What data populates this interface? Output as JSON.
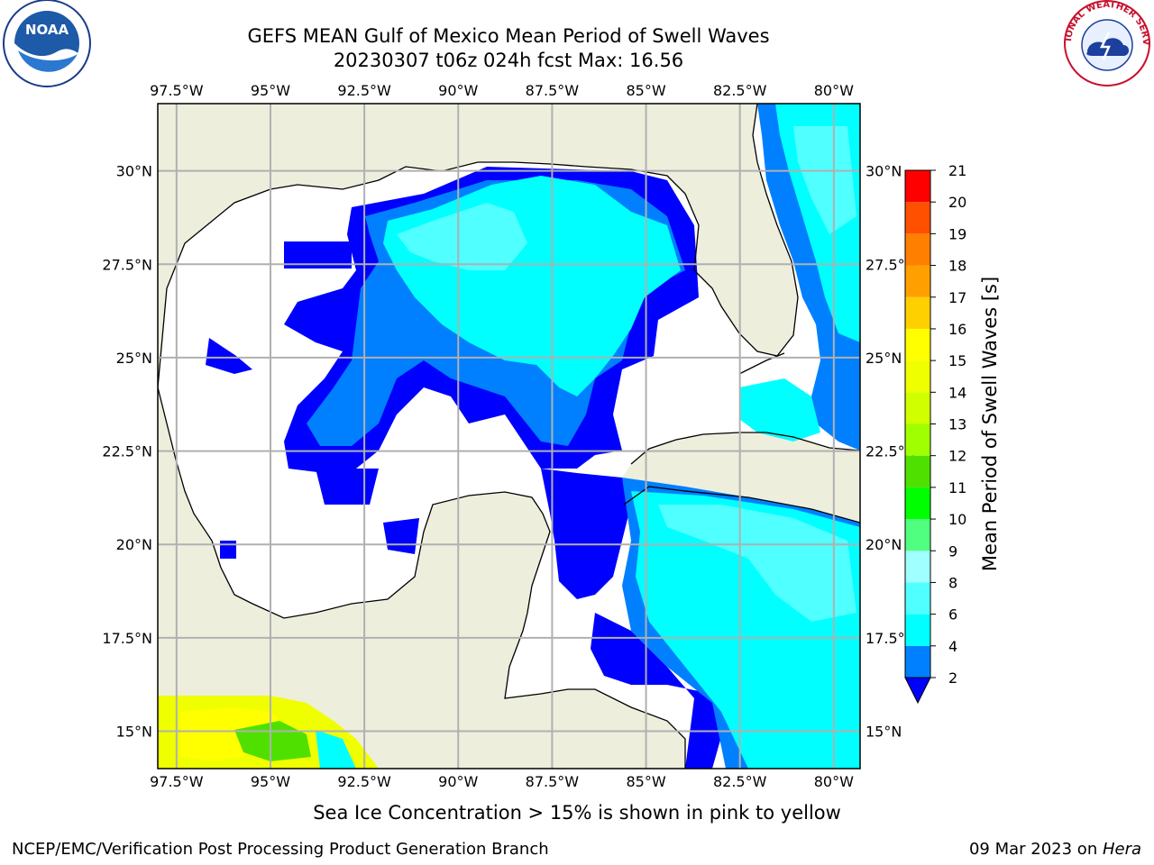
{
  "title_line1": "GEFS MEAN Gulf of Mexico Mean Period of Swell Waves",
  "title_line2": "20230307 t06z 024h fcst   Max: 16.56",
  "logos": {
    "left": "NOAA",
    "right": "NATIONAL WEATHER SERVICE"
  },
  "map": {
    "lon_labels": [
      "97.5°W",
      "95°W",
      "92.5°W",
      "90°W",
      "87.5°W",
      "85°W",
      "82.5°W",
      "80°W"
    ],
    "lat_labels_left": [
      "30°N",
      "27.5°N",
      "25°N",
      "22.5°N",
      "20°N",
      "17.5°N",
      "15°N"
    ],
    "lat_labels_right": [
      "30°N",
      "27.5°N",
      "25°N",
      "22.5°N",
      "20°N",
      "17.5°N",
      "15°N"
    ],
    "lon_range": [
      -98,
      -79.3
    ],
    "lat_range": [
      14,
      31.8
    ]
  },
  "colorbar": {
    "label": "Mean Period of Swell Waves [s]",
    "ticks": [
      "2",
      "4",
      "6",
      "8",
      "9",
      "10",
      "11",
      "12",
      "13",
      "14",
      "15",
      "16",
      "17",
      "18",
      "19",
      "20",
      "21"
    ],
    "colors": [
      "#0000ff",
      "#0080ff",
      "#00ffff",
      "#50ffff",
      "#a0ffff",
      "#50ff80",
      "#00ff00",
      "#50e000",
      "#a0ff00",
      "#d0ff00",
      "#f0ff00",
      "#ffff00",
      "#ffd000",
      "#ffa000",
      "#ff8000",
      "#ff5000",
      "#ff0000"
    ]
  },
  "ice_note": "Sea Ice Concentration > 15% is shown in pink to yellow",
  "footer_left": "NCEP/EMC/Verification Post Processing Product Generation Branch",
  "footer_date": "09 Mar 2023 on ",
  "footer_host": "Hera",
  "colors": {
    "land": "#eeeedd",
    "grid": "#b0b0b0",
    "water_blank": "#ffffff"
  }
}
